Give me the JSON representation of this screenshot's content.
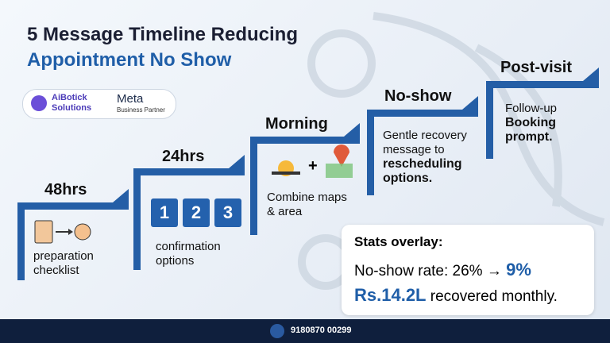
{
  "header": {
    "title_line1": "5 Message Timeline Reducing",
    "title_line2": "Appointment No Show"
  },
  "logos": {
    "brand_line1": "AiBotick",
    "brand_line2": "Solutions",
    "partner_name": "Meta",
    "partner_tag": "Business Partner"
  },
  "steps": [
    {
      "label": "48hrs",
      "text": [
        "preparation",
        "checklist"
      ]
    },
    {
      "label": "24hrs",
      "numbers": [
        "1",
        "2",
        "3"
      ],
      "text": [
        "confirmation",
        "options"
      ]
    },
    {
      "label": "Morning",
      "plus": "+",
      "text": [
        "Combine maps",
        "& area"
      ]
    },
    {
      "label": "No-show",
      "text": [
        "Gentle recovery",
        "message to"
      ],
      "bold": [
        "rescheduling",
        "options."
      ]
    },
    {
      "label": "Post-visit",
      "text": [
        "Follow-up"
      ],
      "bold": [
        "Booking",
        "prompt."
      ]
    }
  ],
  "stats": {
    "title": "Stats overlay:",
    "rate_text": "No-show rate: 26% →",
    "rate_new": "9%",
    "amount": "Rs.14.2L",
    "amount_text": "recovered monthly."
  },
  "footer": {
    "phone": "9180870 00299"
  }
}
